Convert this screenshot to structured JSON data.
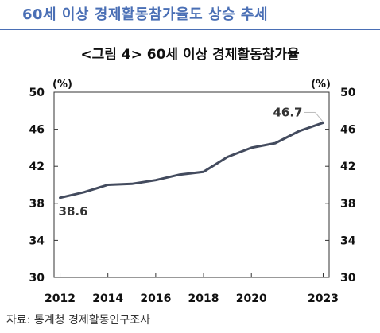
{
  "header": {
    "title": "60세 이상 경제활동참가율도 상승 추세"
  },
  "chart_title": "<그림 4> 60세 이상 경제활동참가율",
  "source": "자료: 통계청 경제활동인구조사",
  "chart_data": {
    "type": "line",
    "x": [
      2012,
      2013,
      2014,
      2015,
      2016,
      2017,
      2018,
      2019,
      2020,
      2021,
      2022,
      2023
    ],
    "series": [
      {
        "values": [
          38.6,
          39.2,
          40.0,
          40.1,
          40.5,
          41.1,
          41.4,
          43.0,
          44.0,
          44.5,
          45.8,
          46.7
        ]
      }
    ],
    "xticks": [
      "2012",
      "2014",
      "2016",
      "2018",
      "2020",
      "2023"
    ],
    "xtick_values": [
      2012,
      2014,
      2016,
      2018,
      2020,
      2023
    ],
    "yticks": [
      "50",
      "46",
      "42",
      "38",
      "34",
      "30"
    ],
    "ytick_values": [
      50,
      46,
      42,
      38,
      34,
      30
    ],
    "ylim": [
      30,
      50
    ],
    "y_unit_left": "(%)",
    "y_unit_right": "(%)",
    "annotations": [
      {
        "label": "38.6",
        "x": 2012,
        "y": 38.6
      },
      {
        "label": "46.7",
        "x": 2023,
        "y": 46.7
      }
    ],
    "line_color": "#434b5e",
    "grid": false
  }
}
